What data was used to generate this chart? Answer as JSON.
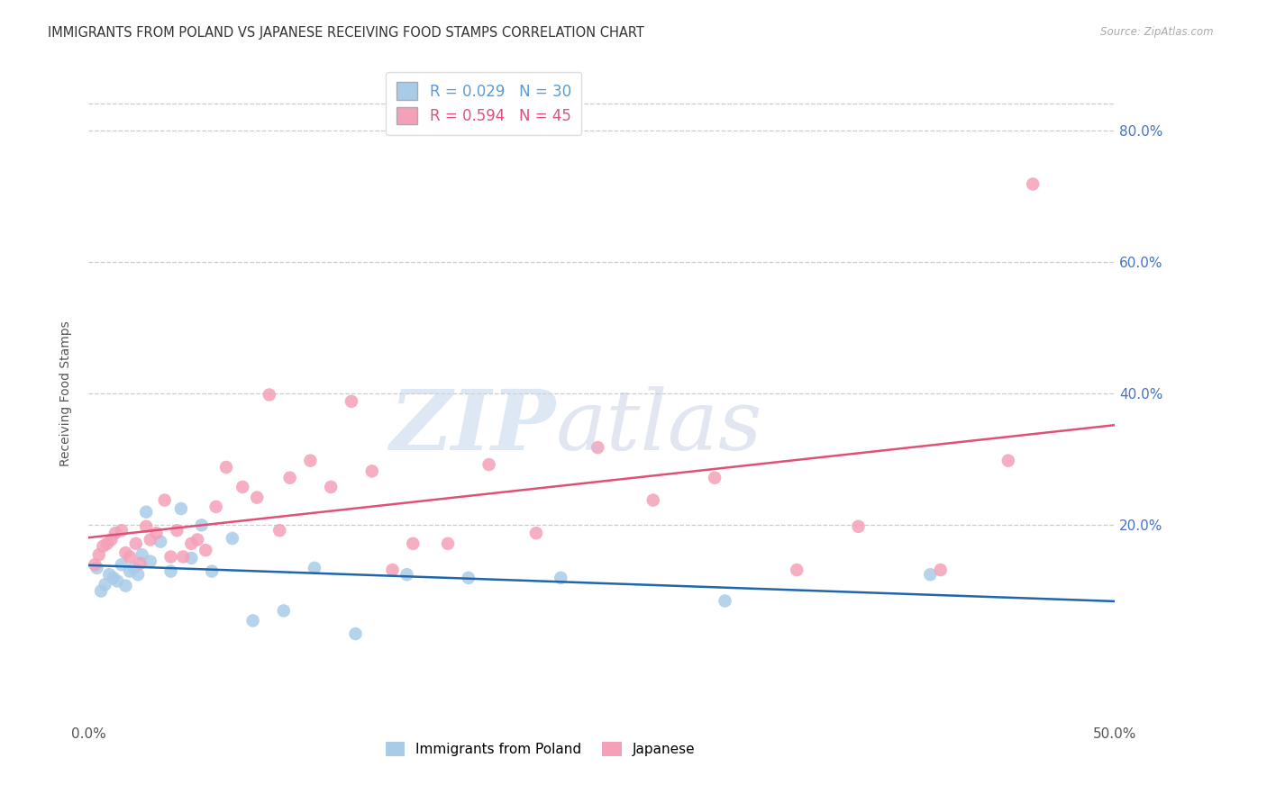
{
  "title": "IMMIGRANTS FROM POLAND VS JAPANESE RECEIVING FOOD STAMPS CORRELATION CHART",
  "source": "Source: ZipAtlas.com",
  "ylabel": "Receiving Food Stamps",
  "ytick_labels": [
    "80.0%",
    "60.0%",
    "40.0%",
    "20.0%"
  ],
  "ytick_values": [
    0.8,
    0.6,
    0.4,
    0.2
  ],
  "xlim": [
    0.0,
    0.5
  ],
  "ylim": [
    -0.1,
    0.9
  ],
  "legend_label1": "R = 0.029   N = 30",
  "legend_label2": "R = 0.594   N = 45",
  "legend_color1": "#5b9bd5",
  "legend_color2": "#e05080",
  "poland_color": "#a8cce8",
  "japanese_color": "#f4a0b8",
  "poland_line_color": "#2166ac",
  "japanese_line_color": "#e05075",
  "poland_x": [
    0.004,
    0.006,
    0.008,
    0.01,
    0.012,
    0.014,
    0.016,
    0.018,
    0.02,
    0.022,
    0.024,
    0.026,
    0.028,
    0.03,
    0.035,
    0.04,
    0.045,
    0.05,
    0.055,
    0.06,
    0.07,
    0.08,
    0.095,
    0.11,
    0.13,
    0.155,
    0.185,
    0.23,
    0.31,
    0.41
  ],
  "poland_y": [
    0.135,
    0.1,
    0.11,
    0.125,
    0.12,
    0.115,
    0.14,
    0.108,
    0.13,
    0.135,
    0.125,
    0.155,
    0.22,
    0.145,
    0.175,
    0.13,
    0.225,
    0.15,
    0.2,
    0.13,
    0.18,
    0.055,
    0.07,
    0.135,
    0.035,
    0.125,
    0.12,
    0.12,
    0.085,
    0.125
  ],
  "japanese_x": [
    0.003,
    0.005,
    0.007,
    0.009,
    0.011,
    0.013,
    0.016,
    0.018,
    0.02,
    0.023,
    0.025,
    0.028,
    0.03,
    0.033,
    0.037,
    0.04,
    0.043,
    0.046,
    0.05,
    0.053,
    0.057,
    0.062,
    0.067,
    0.075,
    0.082,
    0.088,
    0.093,
    0.098,
    0.108,
    0.118,
    0.128,
    0.138,
    0.148,
    0.158,
    0.175,
    0.195,
    0.218,
    0.248,
    0.275,
    0.305,
    0.345,
    0.375,
    0.415,
    0.448,
    0.46
  ],
  "japanese_y": [
    0.14,
    0.155,
    0.168,
    0.172,
    0.178,
    0.188,
    0.192,
    0.158,
    0.152,
    0.172,
    0.142,
    0.198,
    0.178,
    0.188,
    0.238,
    0.152,
    0.192,
    0.152,
    0.172,
    0.178,
    0.162,
    0.228,
    0.288,
    0.258,
    0.242,
    0.398,
    0.192,
    0.272,
    0.298,
    0.258,
    0.388,
    0.282,
    0.132,
    0.172,
    0.172,
    0.292,
    0.188,
    0.318,
    0.238,
    0.272,
    0.132,
    0.198,
    0.132,
    0.298,
    0.718
  ],
  "grid_color": "#cccccc",
  "background_color": "#ffffff"
}
